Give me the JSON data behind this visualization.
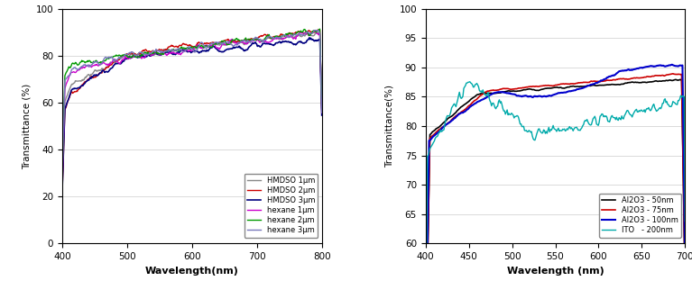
{
  "chart1": {
    "xlabel": "Wavelength(nm)",
    "ylabel": "Transmittance (%)",
    "xlim": [
      400,
      800
    ],
    "ylim": [
      0,
      100
    ],
    "yticks": [
      0,
      20,
      40,
      60,
      80,
      100
    ],
    "xticks": [
      400,
      500,
      600,
      700,
      800
    ],
    "legend": [
      {
        "label": "HMDSO 1μm",
        "color": "#888888",
        "lw": 1.0
      },
      {
        "label": "HMDSO 2μm",
        "color": "#cc0000",
        "lw": 1.0
      },
      {
        "label": "HMDSO 3μm",
        "color": "#000080",
        "lw": 1.2
      },
      {
        "label": "hexane 1μm",
        "color": "#cc00cc",
        "lw": 1.0
      },
      {
        "label": "hexane 2μm",
        "color": "#009900",
        "lw": 1.0
      },
      {
        "label": "hexane 3μm",
        "color": "#7777bb",
        "lw": 1.0
      }
    ]
  },
  "chart2": {
    "xlabel": "Wavelength (nm)",
    "ylabel": "Transmittance(%)",
    "xlim": [
      400,
      700
    ],
    "ylim": [
      60,
      100
    ],
    "yticks": [
      60,
      65,
      70,
      75,
      80,
      85,
      90,
      95,
      100
    ],
    "xticks": [
      400,
      450,
      500,
      550,
      600,
      650,
      700
    ],
    "legend": [
      {
        "label": "Al2O3 - 50nm",
        "color": "#000000",
        "lw": 1.2
      },
      {
        "label": "Al2O3 - 75nm",
        "color": "#cc0000",
        "lw": 1.2
      },
      {
        "label": "Al2O3 - 100nm",
        "color": "#0000cc",
        "lw": 1.5
      },
      {
        "label": "ITO   - 200nm",
        "color": "#00aaaa",
        "lw": 1.0
      }
    ]
  }
}
